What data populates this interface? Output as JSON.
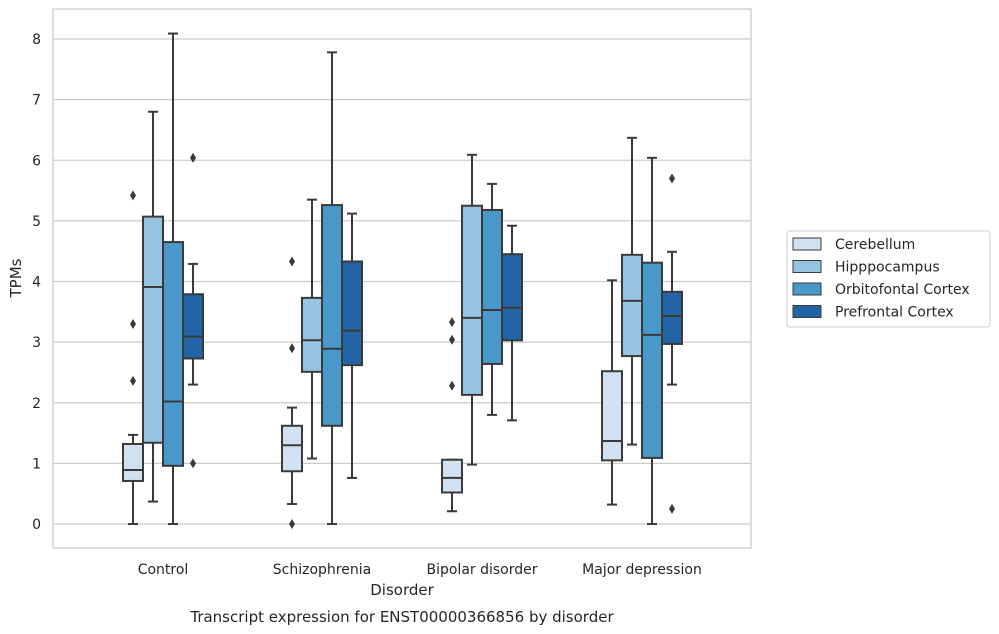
{
  "caption": "Transcript expression for ENST00000366856 by disorder",
  "chart_data": {
    "type": "box",
    "title": "",
    "xlabel": "Disorder",
    "ylabel": "TPMs",
    "ylim": [
      -0.4,
      8.5
    ],
    "yticks": [
      0,
      1,
      2,
      3,
      4,
      5,
      6,
      7,
      8
    ],
    "grid": true,
    "legend_position": "right",
    "categories": [
      "Control",
      "Schizophrenia",
      "Bipolar disorder",
      "Major depression"
    ],
    "series": [
      {
        "name": "Cerebellum",
        "color": "#d0e1f2",
        "boxes": [
          {
            "whislo": 0.0,
            "q1": 0.71,
            "med": 0.89,
            "q3": 1.32,
            "whishi": 1.47,
            "fliers": [
              2.36,
              3.3,
              5.42
            ]
          },
          {
            "whislo": 0.33,
            "q1": 0.87,
            "med": 1.3,
            "q3": 1.62,
            "whishi": 1.92,
            "fliers": [
              0.0,
              2.9,
              4.33
            ]
          },
          {
            "whislo": 0.21,
            "q1": 0.52,
            "med": 0.76,
            "q3": 1.06,
            "whishi": 1.06,
            "fliers": [
              2.28,
              3.04,
              3.33
            ]
          },
          {
            "whislo": 0.32,
            "q1": 1.05,
            "med": 1.37,
            "q3": 2.52,
            "whishi": 4.02,
            "fliers": []
          }
        ]
      },
      {
        "name": "Hipppocampus",
        "color": "#94c4df",
        "boxes": [
          {
            "whislo": 0.37,
            "q1": 1.34,
            "med": 3.91,
            "q3": 5.07,
            "whishi": 6.8,
            "fliers": []
          },
          {
            "whislo": 1.08,
            "q1": 2.51,
            "med": 3.03,
            "q3": 3.73,
            "whishi": 5.35,
            "fliers": []
          },
          {
            "whislo": 0.98,
            "q1": 2.13,
            "med": 3.4,
            "q3": 5.25,
            "whishi": 6.09,
            "fliers": []
          },
          {
            "whislo": 1.31,
            "q1": 2.77,
            "med": 3.68,
            "q3": 4.44,
            "whishi": 6.37,
            "fliers": []
          }
        ]
      },
      {
        "name": "Orbitofontal Cortex",
        "color": "#4a98c9",
        "boxes": [
          {
            "whislo": 0.0,
            "q1": 0.96,
            "med": 2.02,
            "q3": 4.65,
            "whishi": 8.09,
            "fliers": []
          },
          {
            "whislo": 0.0,
            "q1": 1.62,
            "med": 2.89,
            "q3": 5.26,
            "whishi": 7.78,
            "fliers": []
          },
          {
            "whislo": 1.8,
            "q1": 2.64,
            "med": 3.53,
            "q3": 5.18,
            "whishi": 5.61,
            "fliers": []
          },
          {
            "whislo": 0.0,
            "q1": 1.09,
            "med": 3.12,
            "q3": 4.31,
            "whishi": 6.04,
            "fliers": []
          }
        ]
      },
      {
        "name": "Prefrontal Cortex",
        "color": "#2264a6",
        "boxes": [
          {
            "whislo": 2.3,
            "q1": 2.73,
            "med": 3.09,
            "q3": 3.79,
            "whishi": 4.29,
            "fliers": [
              1.0,
              6.04
            ]
          },
          {
            "whislo": 0.76,
            "q1": 2.62,
            "med": 3.19,
            "q3": 4.33,
            "whishi": 5.12,
            "fliers": []
          },
          {
            "whislo": 1.71,
            "q1": 3.03,
            "med": 3.57,
            "q3": 4.45,
            "whishi": 4.92,
            "fliers": []
          },
          {
            "whislo": 2.3,
            "q1": 2.97,
            "med": 3.43,
            "q3": 3.83,
            "whishi": 4.49,
            "fliers": [
              0.25,
              5.7
            ]
          }
        ]
      }
    ]
  }
}
